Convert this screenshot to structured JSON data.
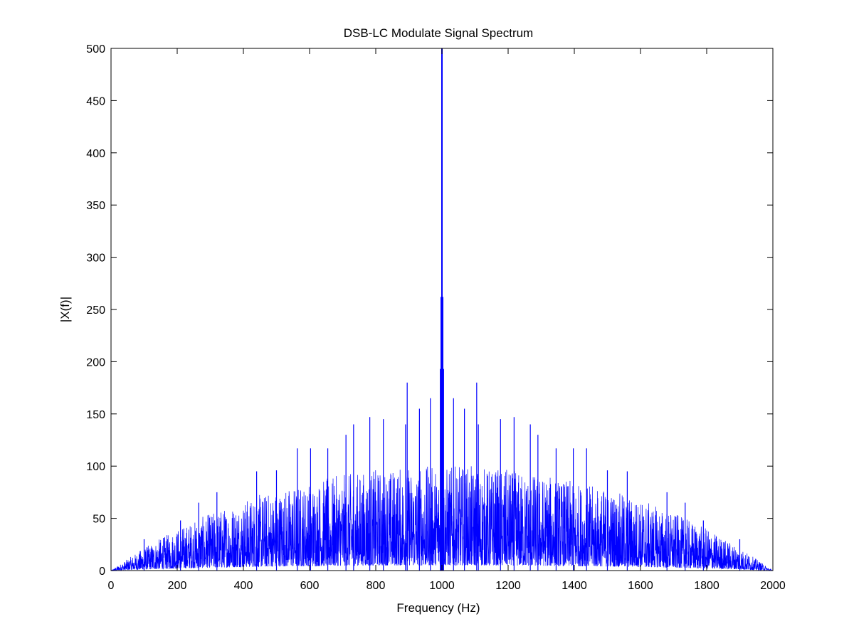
{
  "chart_data": {
    "type": "line",
    "title": "DSB-LC Modulate Signal Spectrum",
    "xlabel": "Frequency (Hz)",
    "ylabel": "|X(f)|",
    "xlim": [
      0,
      2000
    ],
    "ylim": [
      0,
      500
    ],
    "xticks": [
      0,
      200,
      400,
      600,
      800,
      1000,
      1200,
      1400,
      1600,
      1800,
      2000
    ],
    "yticks": [
      0,
      50,
      100,
      150,
      200,
      250,
      300,
      350,
      400,
      450,
      500
    ],
    "grid": false,
    "legend": "none",
    "line_color": "#0000ff",
    "series": [
      {
        "carrier_peak": {
          "x": 1000,
          "y": 500
        },
        "major_peaks": [
          {
            "x": 997,
            "y": 262
          },
          {
            "x": 1003,
            "y": 262
          },
          {
            "x": 995,
            "y": 193
          },
          {
            "x": 1005,
            "y": 193
          },
          {
            "x": 895,
            "y": 180
          },
          {
            "x": 1105,
            "y": 180
          },
          {
            "x": 965,
            "y": 165
          },
          {
            "x": 1035,
            "y": 165
          },
          {
            "x": 782,
            "y": 147
          },
          {
            "x": 1218,
            "y": 147
          },
          {
            "x": 733,
            "y": 140
          },
          {
            "x": 1267,
            "y": 140
          },
          {
            "x": 890,
            "y": 140
          },
          {
            "x": 1110,
            "y": 140
          },
          {
            "x": 823,
            "y": 145
          },
          {
            "x": 1177,
            "y": 145
          },
          {
            "x": 932,
            "y": 155
          },
          {
            "x": 1068,
            "y": 155
          },
          {
            "x": 1290,
            "y": 130
          },
          {
            "x": 710,
            "y": 130
          },
          {
            "x": 603,
            "y": 117
          },
          {
            "x": 1397,
            "y": 117
          },
          {
            "x": 563,
            "y": 117
          },
          {
            "x": 1437,
            "y": 117
          },
          {
            "x": 655,
            "y": 117
          },
          {
            "x": 1345,
            "y": 117
          },
          {
            "x": 440,
            "y": 95
          },
          {
            "x": 1560,
            "y": 95
          },
          {
            "x": 500,
            "y": 96
          },
          {
            "x": 1500,
            "y": 96
          },
          {
            "x": 320,
            "y": 75
          },
          {
            "x": 1680,
            "y": 75
          },
          {
            "x": 265,
            "y": 65
          },
          {
            "x": 1735,
            "y": 65
          },
          {
            "x": 210,
            "y": 48
          },
          {
            "x": 1790,
            "y": 48
          },
          {
            "x": 100,
            "y": 30
          },
          {
            "x": 1900,
            "y": 30
          }
        ],
        "envelope": [
          {
            "x": 0,
            "y": 0
          },
          {
            "x": 100,
            "y": 22
          },
          {
            "x": 200,
            "y": 40
          },
          {
            "x": 300,
            "y": 55
          },
          {
            "x": 400,
            "y": 68
          },
          {
            "x": 500,
            "y": 78
          },
          {
            "x": 600,
            "y": 85
          },
          {
            "x": 700,
            "y": 92
          },
          {
            "x": 800,
            "y": 97
          },
          {
            "x": 900,
            "y": 100
          },
          {
            "x": 1000,
            "y": 100
          },
          {
            "x": 1100,
            "y": 100
          },
          {
            "x": 1200,
            "y": 97
          },
          {
            "x": 1300,
            "y": 92
          },
          {
            "x": 1400,
            "y": 85
          },
          {
            "x": 1500,
            "y": 78
          },
          {
            "x": 1600,
            "y": 68
          },
          {
            "x": 1700,
            "y": 55
          },
          {
            "x": 1800,
            "y": 40
          },
          {
            "x": 1900,
            "y": 22
          },
          {
            "x": 2000,
            "y": 0
          }
        ]
      }
    ]
  }
}
